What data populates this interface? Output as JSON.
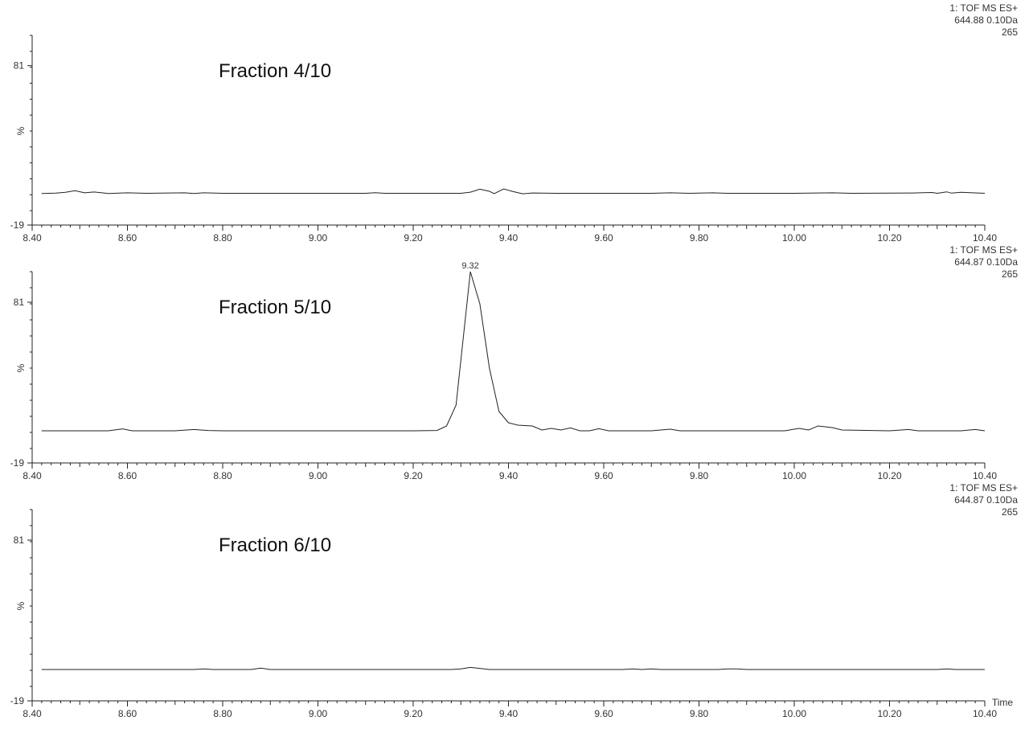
{
  "chart_data": [
    {
      "type": "line",
      "title": "Fraction 4/10",
      "header": [
        "1: TOF MS ES+",
        "644.88 0.10Da",
        "265"
      ],
      "xlim": [
        8.4,
        10.4
      ],
      "ylim": [
        -19,
        100
      ],
      "y_tick_labels": [
        "81",
        "-19"
      ],
      "ylabel": "%",
      "x_tick_labels": [
        "8.40",
        "8.60",
        "8.80",
        "9.00",
        "9.20",
        "9.40",
        "9.60",
        "9.80",
        "10.00",
        "10.20",
        "10.40"
      ],
      "peak_labels": [],
      "series": [
        {
          "x": [
            8.42,
            8.45,
            8.47,
            8.49,
            8.51,
            8.53,
            8.56,
            8.6,
            8.64,
            8.72,
            8.74,
            8.76,
            8.8,
            9.0,
            9.1,
            9.12,
            9.14,
            9.3,
            9.32,
            9.34,
            9.36,
            9.37,
            9.39,
            9.41,
            9.43,
            9.45,
            9.47,
            9.5,
            9.7,
            9.74,
            9.78,
            9.83,
            9.86,
            10.0,
            10.08,
            10.12,
            10.25,
            10.29,
            10.3,
            10.32,
            10.33,
            10.35,
            10.4
          ],
          "values": [
            0.8,
            1.0,
            1.5,
            2.6,
            1.2,
            1.7,
            0.8,
            1.2,
            0.9,
            1.2,
            0.8,
            1.2,
            0.9,
            0.9,
            0.9,
            1.3,
            0.9,
            0.9,
            1.6,
            3.5,
            2.2,
            0.7,
            3.7,
            2.0,
            0.6,
            1.1,
            1.0,
            0.9,
            0.9,
            1.2,
            0.9,
            1.2,
            0.9,
            0.9,
            1.2,
            0.9,
            1.1,
            1.4,
            0.9,
            1.8,
            1.0,
            1.5,
            0.9
          ]
        }
      ]
    },
    {
      "type": "line",
      "title": "Fraction 5/10",
      "header": [
        "1: TOF MS ES+",
        "644.87 0.10Da",
        "265"
      ],
      "xlim": [
        8.4,
        10.4
      ],
      "ylim": [
        -19,
        100
      ],
      "y_tick_labels": [
        "81",
        "-19"
      ],
      "ylabel": "%",
      "x_tick_labels": [
        "8.40",
        "8.60",
        "8.80",
        "9.00",
        "9.20",
        "9.40",
        "9.60",
        "9.80",
        "10.00",
        "10.20",
        "10.40"
      ],
      "peak_labels": [
        "9.32"
      ],
      "series": [
        {
          "x": [
            8.42,
            8.56,
            8.59,
            8.61,
            8.7,
            8.74,
            8.77,
            8.8,
            9.0,
            9.2,
            9.25,
            9.27,
            9.29,
            9.32,
            9.34,
            9.36,
            9.38,
            9.4,
            9.42,
            9.45,
            9.47,
            9.49,
            9.51,
            9.53,
            9.55,
            9.57,
            9.59,
            9.61,
            9.7,
            9.74,
            9.76,
            9.9,
            9.98,
            10.01,
            10.03,
            10.05,
            10.08,
            10.1,
            10.2,
            10.24,
            10.26,
            10.35,
            10.38,
            10.4
          ],
          "values": [
            1.0,
            1.0,
            2.2,
            1.0,
            1.0,
            1.8,
            1.2,
            1.0,
            1.0,
            1.0,
            1.2,
            4.0,
            17.0,
            100.0,
            80.0,
            40.0,
            13.0,
            6.0,
            4.5,
            4.0,
            1.5,
            2.5,
            1.5,
            2.8,
            1.0,
            1.0,
            2.3,
            1.0,
            1.0,
            2.0,
            1.0,
            1.0,
            1.0,
            2.5,
            1.5,
            4.0,
            3.0,
            1.5,
            1.0,
            1.8,
            1.0,
            1.0,
            1.8,
            1.0
          ]
        }
      ]
    },
    {
      "type": "line",
      "title": "Fraction 6/10",
      "header": [
        "1: TOF MS ES+",
        "644.87 0.10Da",
        "265"
      ],
      "xlim": [
        8.4,
        10.4
      ],
      "ylim": [
        -19,
        100
      ],
      "y_tick_labels": [
        "81",
        "-19"
      ],
      "ylabel": "%",
      "x_tick_labels": [
        "8.40",
        "8.60",
        "8.80",
        "9.00",
        "9.20",
        "9.40",
        "9.60",
        "9.80",
        "10.00",
        "10.20",
        "10.40"
      ],
      "x_axis_label": "Time",
      "peak_labels": [],
      "series": [
        {
          "x": [
            8.42,
            8.74,
            8.76,
            8.78,
            8.86,
            8.88,
            8.9,
            9.28,
            9.3,
            9.32,
            9.34,
            9.36,
            9.64,
            9.66,
            9.68,
            9.7,
            9.72,
            9.84,
            9.86,
            9.88,
            9.9,
            10.3,
            10.32,
            10.34,
            10.4
          ],
          "values": [
            0.5,
            0.5,
            0.9,
            0.5,
            0.5,
            1.4,
            0.5,
            0.5,
            0.9,
            1.8,
            1.2,
            0.5,
            0.5,
            0.9,
            0.5,
            0.9,
            0.5,
            0.5,
            0.9,
            0.9,
            0.5,
            0.5,
            0.9,
            0.5,
            0.5
          ]
        }
      ]
    }
  ]
}
